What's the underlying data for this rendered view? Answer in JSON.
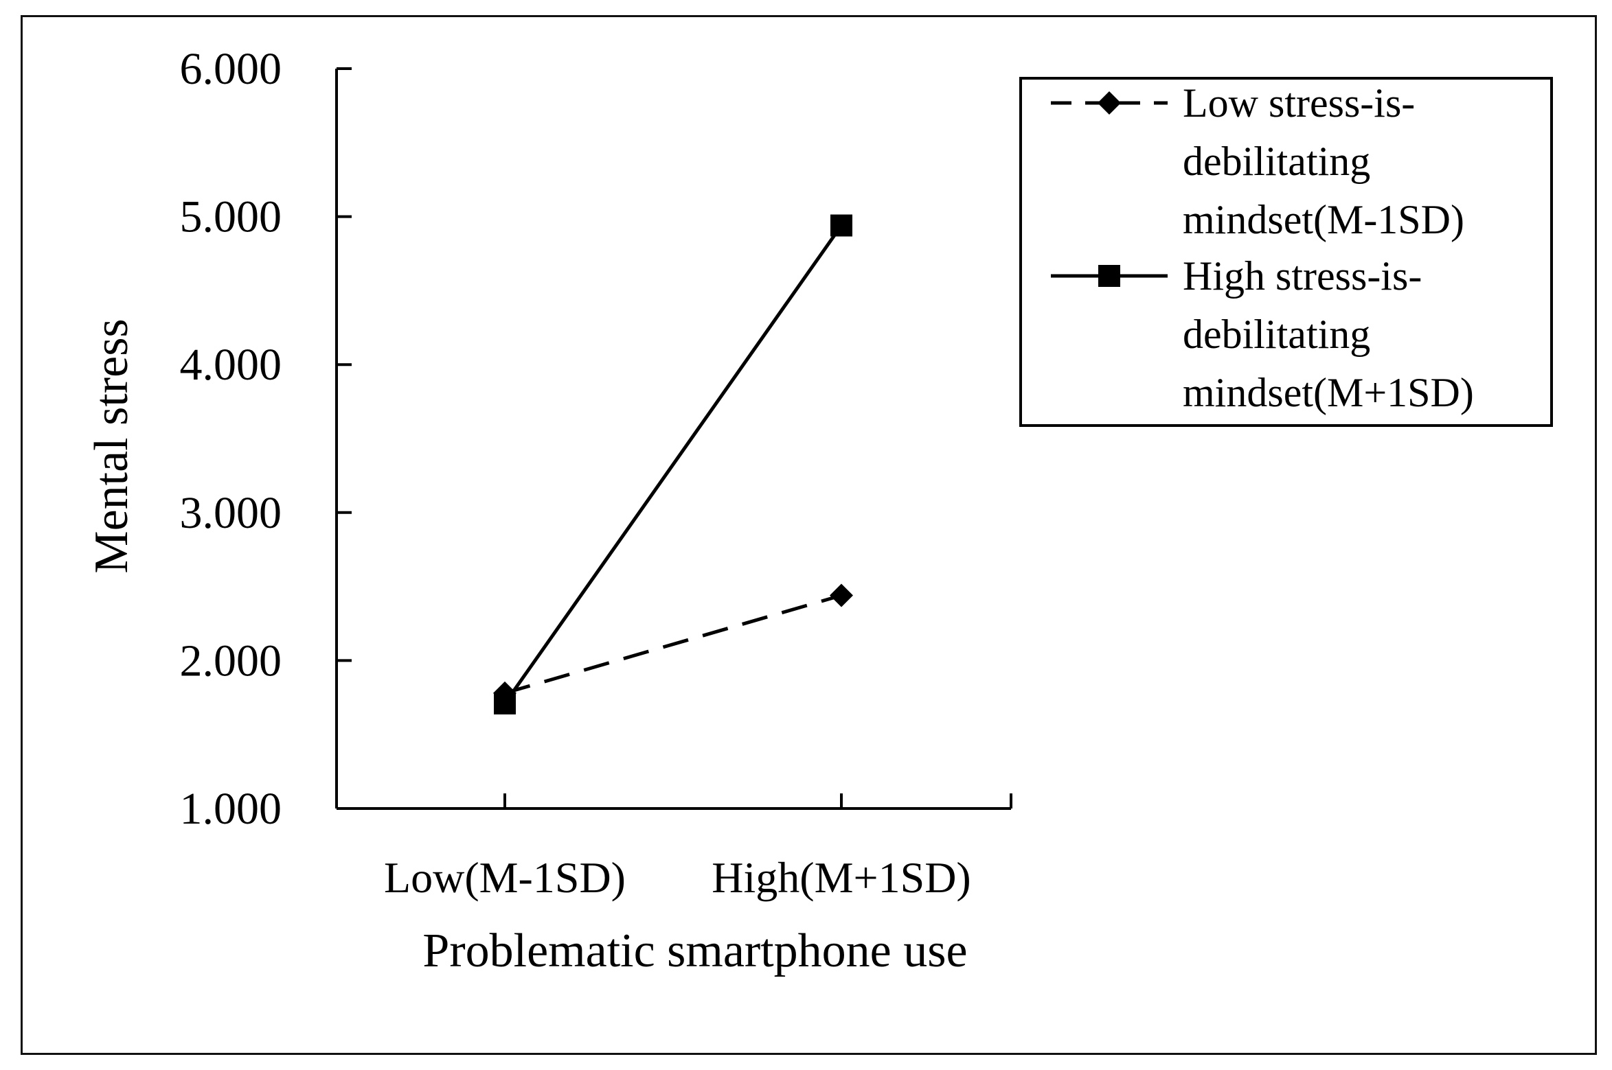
{
  "chart_data": {
    "type": "line",
    "xlabel": "Problematic smartphone use",
    "ylabel": "Mental stress",
    "categories": [
      "Low(M-1SD)",
      "High(M+1SD)"
    ],
    "ylim": [
      1.0,
      6.0
    ],
    "yticks": [
      "1.000",
      "2.000",
      "3.000",
      "4.000",
      "5.000",
      "6.000"
    ],
    "grid": false,
    "legend_position": "top-right",
    "series": [
      {
        "name": "Low stress-is-debilitating mindset(M-1SD)",
        "legend_lines": [
          "Low stress-is-",
          "debilitating",
          "mindset(M-1SD)"
        ],
        "values": [
          1.78,
          2.44
        ],
        "line_style": "dashed",
        "marker": "diamond",
        "color": "#000000"
      },
      {
        "name": "High stress-is-debilitating mindset(M+1SD)",
        "legend_lines": [
          "High stress-is-",
          "debilitating",
          "mindset(M+1SD)"
        ],
        "values": [
          1.71,
          4.94
        ],
        "line_style": "solid",
        "marker": "square",
        "color": "#000000"
      }
    ]
  }
}
